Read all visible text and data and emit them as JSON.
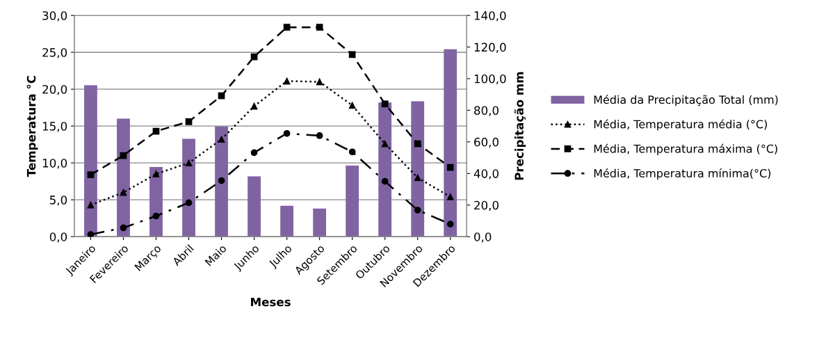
{
  "chart_data": {
    "type": "line",
    "xlabel": "Meses",
    "ylabel": "Temperatura °C",
    "y2label": "Precipitação mm",
    "categories": [
      "Janeiro",
      "Fevereiro",
      "Março",
      "Abril",
      "Maio",
      "Junho",
      "Julho",
      "Agosto",
      "Setembro",
      "Outubro",
      "Novembro",
      "Dezembro"
    ],
    "series": [
      {
        "name": "Média da Precipitação Total (mm)",
        "type": "bar",
        "axis": "y2",
        "color": "#8064a2",
        "values": [
          95.8,
          74.7,
          44.1,
          61.9,
          69.8,
          38.2,
          19.6,
          17.8,
          45.0,
          84.9,
          85.7,
          118.6
        ]
      },
      {
        "name": "Média, Temperatura média (°C)",
        "color": "#000000",
        "marker": "triangle",
        "line_style": "dotted",
        "values": [
          4.3,
          6.0,
          8.5,
          10.0,
          13.2,
          17.7,
          21.1,
          21.0,
          17.8,
          12.6,
          8.0,
          5.4
        ]
      },
      {
        "name": "Média, Temperatura máxima (°C)",
        "color": "#000000",
        "marker": "square",
        "line_style": "dashed",
        "values": [
          8.4,
          11.0,
          14.3,
          15.6,
          19.1,
          24.4,
          28.4,
          28.4,
          24.7,
          18.0,
          12.6,
          9.4
        ]
      },
      {
        "name": "Média, Temperatura mínima(°C)",
        "color": "#000000",
        "marker": "circle",
        "line_style": "dashdot",
        "values": [
          0.3,
          1.2,
          2.8,
          4.6,
          7.6,
          11.4,
          14.0,
          13.7,
          11.5,
          7.5,
          3.6,
          1.7
        ]
      }
    ],
    "ylim": [
      0,
      30
    ],
    "yticks": [
      {
        "value": 0,
        "label": "0,0"
      },
      {
        "value": 5,
        "label": "5,0"
      },
      {
        "value": 10,
        "label": "10,0"
      },
      {
        "value": 15,
        "label": "15,0"
      },
      {
        "value": 20,
        "label": "20,0"
      },
      {
        "value": 25,
        "label": "25,0"
      },
      {
        "value": 30,
        "label": "30,0"
      }
    ],
    "y2lim": [
      0,
      140
    ],
    "y2ticks": [
      {
        "value": 0,
        "label": "0,0"
      },
      {
        "value": 20,
        "label": "20,0"
      },
      {
        "value": 40,
        "label": "40,0"
      },
      {
        "value": 60,
        "label": "60,0"
      },
      {
        "value": 80,
        "label": "80,0"
      },
      {
        "value": 100,
        "label": "100,0"
      },
      {
        "value": 120,
        "label": "120,0"
      },
      {
        "value": 140,
        "label": "140,0"
      }
    ],
    "grid": "y",
    "legend": "right"
  }
}
